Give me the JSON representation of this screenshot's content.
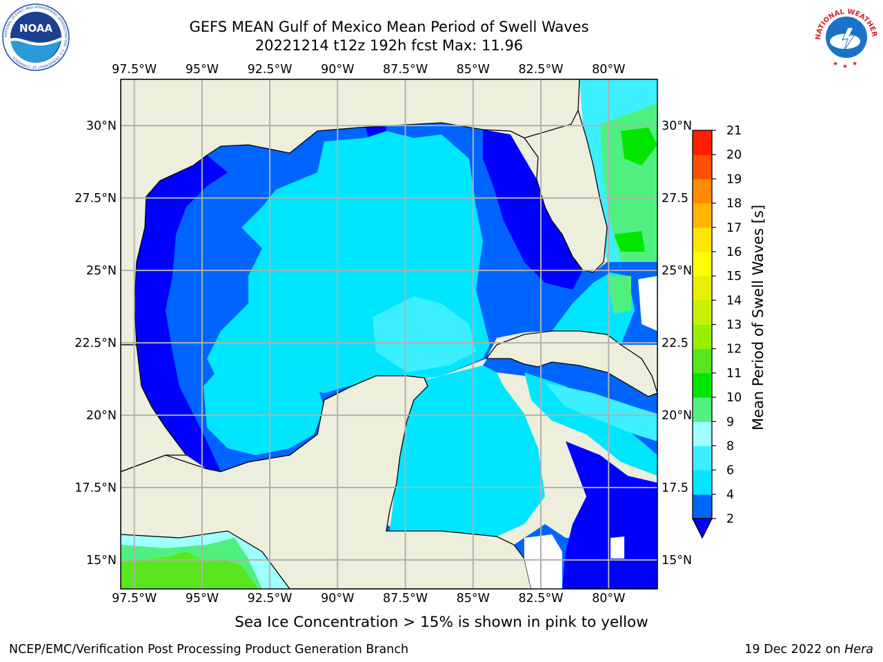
{
  "header": {
    "title_line1": "GEFS MEAN Gulf of Mexico Mean Period of Swell Waves",
    "title_line2": "20221214 t12z 192h fcst   Max: 11.96"
  },
  "logos": {
    "noaa_text": "NOAA",
    "noaa_ring_text": "NATIONAL OCEANIC AND ATMOSPHERIC ADMINISTRATION · U.S. DEPARTMENT OF COMMERCE",
    "nws_ring_text": "NATIONAL WEATHER SERVICE"
  },
  "map": {
    "lon_ticks": [
      {
        "value": -97.5,
        "label": "97.5°W"
      },
      {
        "value": -95,
        "label": "95°W"
      },
      {
        "value": -92.5,
        "label": "92.5°W"
      },
      {
        "value": -90,
        "label": "90°W"
      },
      {
        "value": -87.5,
        "label": "87.5°W"
      },
      {
        "value": -85,
        "label": "85°W"
      },
      {
        "value": -82.5,
        "label": "82.5°W"
      },
      {
        "value": -80,
        "label": "80°W"
      }
    ],
    "lat_ticks_left": [
      {
        "value": 30,
        "label": "30°N"
      },
      {
        "value": 27.5,
        "label": "27.5°N"
      },
      {
        "value": 25,
        "label": "25°N"
      },
      {
        "value": 22.5,
        "label": "22.5°N"
      },
      {
        "value": 20,
        "label": "20°N"
      },
      {
        "value": 17.5,
        "label": "17.5°N"
      },
      {
        "value": 15,
        "label": "15°N"
      }
    ],
    "lat_ticks_right": [
      {
        "value": 30,
        "label": "30°N"
      },
      {
        "value": 27.5,
        "label": "27.5"
      },
      {
        "value": 25,
        "label": "25°N"
      },
      {
        "value": 22.5,
        "label": "22.5"
      },
      {
        "value": 20,
        "label": "20°N"
      },
      {
        "value": 17.5,
        "label": "17.5"
      },
      {
        "value": 15,
        "label": "15°N"
      }
    ],
    "extent": {
      "lon_min": -98,
      "lon_max": -78.2,
      "lat_min": 14,
      "lat_max": 31.6
    },
    "colors": {
      "land": "#eeeedc",
      "grid": "#b0b0b0",
      "coast": "#000000"
    }
  },
  "colorbar": {
    "label": "Mean Period of Swell Waves [s]",
    "levels": [
      2,
      4,
      6,
      8,
      9,
      10,
      11,
      12,
      13,
      14,
      15,
      16,
      17,
      18,
      19,
      20,
      21
    ],
    "tick_labels": [
      "2",
      "4",
      "6",
      "8",
      "9",
      "10",
      "11",
      "12",
      "13",
      "14",
      "15",
      "16",
      "17",
      "18",
      "19",
      "20",
      "21"
    ],
    "colors": [
      "#0064ff",
      "#00e6ff",
      "#3cf0ff",
      "#a0ffff",
      "#50f080",
      "#00e600",
      "#5ae61e",
      "#96f000",
      "#c8f000",
      "#e6f000",
      "#ffff00",
      "#ffe600",
      "#ffb400",
      "#ff8c00",
      "#ff5000",
      "#ff1e00"
    ],
    "extend_below_color": "#0000ff"
  },
  "footer": {
    "sea_ice_note": "Sea Ice Concentration > 15% is shown in pink to yellow",
    "left_text": "NCEP/EMC/Verification Post Processing Product Generation Branch",
    "right_text_prefix": "19 Dec 2022 on ",
    "right_text_host": "Hera"
  }
}
